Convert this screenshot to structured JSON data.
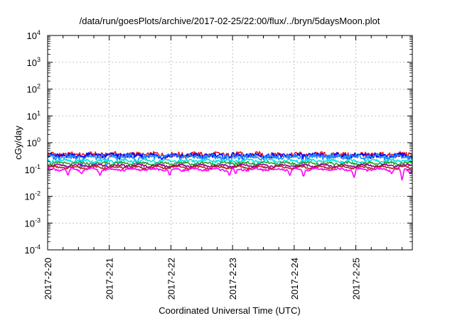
{
  "chart_data": {
    "type": "line",
    "title": "/data/run/goesPlots/archive/2017-02-25/22:00/flux/../bryn/5daysMoon.plot",
    "xlabel": "Coordinated Universal Time (UTC)",
    "ylabel": "cGy/day",
    "yscale": "log",
    "ylim": [
      0.0001,
      10000
    ],
    "xlim": [
      "2017-02-20T00:00",
      "2017-02-25T22:00"
    ],
    "grid": true,
    "legend": "none",
    "y_ticks": [
      {
        "base": "10",
        "exp": "-4"
      },
      {
        "base": "10",
        "exp": "-3"
      },
      {
        "base": "10",
        "exp": "-2"
      },
      {
        "base": "10",
        "exp": "-1"
      },
      {
        "base": "10",
        "exp": "0"
      },
      {
        "base": "10",
        "exp": "1"
      },
      {
        "base": "10",
        "exp": "2"
      },
      {
        "base": "10",
        "exp": "3"
      },
      {
        "base": "10",
        "exp": "4"
      }
    ],
    "x_ticks": [
      "2017-2-20",
      "2017-2-21",
      "2017-2-22",
      "2017-2-23",
      "2017-2-24",
      "2017-2-25"
    ],
    "series": [
      {
        "color": "#e41a1c",
        "level": 0.36,
        "noise": 0.22,
        "dips": []
      },
      {
        "color": "#0000ff",
        "level": 0.33,
        "noise": 0.22,
        "dips": []
      },
      {
        "color": "#1e90ff",
        "level": 0.3,
        "noise": 0.2,
        "dips": [
          [
            0.55,
            0.12
          ],
          [
            0.95,
            0.12
          ],
          [
            1.45,
            0.15
          ],
          [
            2.96,
            0.15
          ],
          [
            4.15,
            0.12
          ],
          [
            5.95,
            0.12
          ]
        ]
      },
      {
        "color": "#00e5e5",
        "level": 0.21,
        "noise": 0.12,
        "dips": []
      },
      {
        "color": "#2ca02c",
        "level": 0.17,
        "noise": 0.1,
        "dips": []
      },
      {
        "color": "#8b008b",
        "level": 0.14,
        "noise": 0.08,
        "dips": []
      },
      {
        "color": "#b22222",
        "level": 0.12,
        "noise": 0.08,
        "dips": []
      },
      {
        "color": "#ff00ff",
        "level": 0.1,
        "noise": 0.08,
        "dips": [
          [
            0.33,
            0.06
          ],
          [
            0.55,
            0.07
          ],
          [
            0.85,
            0.06
          ],
          [
            1.98,
            0.06
          ],
          [
            2.95,
            0.06
          ],
          [
            3.05,
            0.07
          ],
          [
            3.93,
            0.06
          ],
          [
            4.15,
            0.055
          ],
          [
            4.97,
            0.05
          ],
          [
            5.58,
            0.07
          ],
          [
            5.75,
            0.04
          ],
          [
            5.88,
            0.07
          ]
        ]
      }
    ]
  }
}
